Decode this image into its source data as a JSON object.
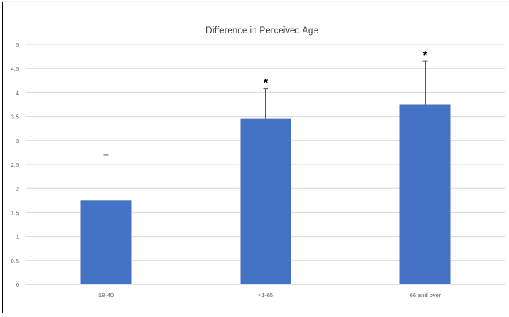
{
  "chart_data": {
    "type": "bar",
    "title": "Difference in Perceived Age",
    "xlabel": "",
    "ylabel": "",
    "categories": [
      "18-40",
      "41-65",
      "66 and over"
    ],
    "values": [
      1.75,
      3.45,
      3.75
    ],
    "error_upper": [
      0.95,
      0.63,
      0.9
    ],
    "significance": [
      "",
      "*",
      "*"
    ],
    "ylim": [
      0,
      5
    ],
    "yticks": [
      0,
      0.5,
      1,
      1.5,
      2,
      2.5,
      3,
      3.5,
      4,
      4.5,
      5
    ],
    "ytick_labels": [
      "0",
      "0.5",
      "1",
      "1.5",
      "2",
      "2.5",
      "3",
      "3.5",
      "4",
      "4.5",
      "5"
    ],
    "grid": true,
    "legend": "none",
    "colors": {
      "bar": "#4472c4",
      "error_bar": "#595959",
      "grid": "#d9d9d9",
      "axis": "#bfbfbf",
      "text": "#595959",
      "title": "#404040",
      "frame": "#000000"
    }
  }
}
